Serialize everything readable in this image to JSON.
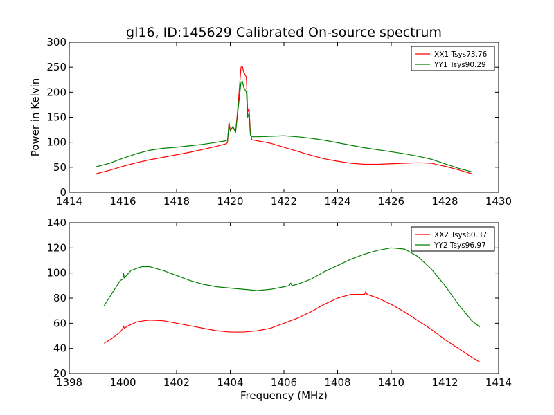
{
  "figure_title": "gl16, ID:145629 Calibrated On-source spectrum",
  "chart_data": [
    {
      "type": "line",
      "title": "gl16, ID:145629 Calibrated On-source spectrum",
      "xlabel": "",
      "ylabel": "Power in Kelvin",
      "xlim": [
        1414,
        1430
      ],
      "ylim": [
        0,
        300
      ],
      "xticks": [
        1414,
        1416,
        1418,
        1420,
        1422,
        1424,
        1426,
        1428,
        1430
      ],
      "yticks": [
        0,
        50,
        100,
        150,
        200,
        250,
        300
      ],
      "legend_position": "top-right",
      "series": [
        {
          "name": "XX1 Tsys73.76",
          "color": "#ff0000",
          "points": [
            [
              1415.0,
              37
            ],
            [
              1415.5,
              44
            ],
            [
              1416.0,
              52
            ],
            [
              1416.5,
              59
            ],
            [
              1417.0,
              65
            ],
            [
              1417.5,
              70
            ],
            [
              1418.0,
              75
            ],
            [
              1418.5,
              80
            ],
            [
              1419.0,
              86
            ],
            [
              1419.5,
              92
            ],
            [
              1419.85,
              97
            ],
            [
              1419.9,
              100
            ],
            [
              1419.95,
              140
            ],
            [
              1420.0,
              125
            ],
            [
              1420.1,
              130
            ],
            [
              1420.2,
              120
            ],
            [
              1420.3,
              180
            ],
            [
              1420.4,
              250
            ],
            [
              1420.45,
              252
            ],
            [
              1420.5,
              240
            ],
            [
              1420.6,
              230
            ],
            [
              1420.65,
              160
            ],
            [
              1420.7,
              168
            ],
            [
              1420.75,
              120
            ],
            [
              1420.8,
              105
            ],
            [
              1421.0,
              103
            ],
            [
              1421.5,
              98
            ],
            [
              1422.0,
              90
            ],
            [
              1422.5,
              82
            ],
            [
              1423.0,
              74
            ],
            [
              1423.5,
              67
            ],
            [
              1424.0,
              62
            ],
            [
              1424.5,
              58
            ],
            [
              1425.0,
              56
            ],
            [
              1425.5,
              56
            ],
            [
              1426.0,
              57
            ],
            [
              1426.5,
              58
            ],
            [
              1427.0,
              59
            ],
            [
              1427.5,
              58
            ],
            [
              1428.0,
              52
            ],
            [
              1428.5,
              45
            ],
            [
              1429.0,
              37
            ]
          ]
        },
        {
          "name": "YY1 Tsys90.29",
          "color": "#008000",
          "points": [
            [
              1415.0,
              51
            ],
            [
              1415.5,
              58
            ],
            [
              1416.0,
              68
            ],
            [
              1416.5,
              77
            ],
            [
              1417.0,
              84
            ],
            [
              1417.5,
              88
            ],
            [
              1418.0,
              90
            ],
            [
              1418.5,
              93
            ],
            [
              1419.0,
              96
            ],
            [
              1419.5,
              100
            ],
            [
              1419.85,
              103
            ],
            [
              1419.9,
              105
            ],
            [
              1419.95,
              135
            ],
            [
              1420.0,
              122
            ],
            [
              1420.1,
              132
            ],
            [
              1420.2,
              120
            ],
            [
              1420.3,
              170
            ],
            [
              1420.4,
              220
            ],
            [
              1420.45,
              222
            ],
            [
              1420.5,
              210
            ],
            [
              1420.6,
              200
            ],
            [
              1420.65,
              150
            ],
            [
              1420.7,
              158
            ],
            [
              1420.75,
              115
            ],
            [
              1420.8,
              111
            ],
            [
              1421.0,
              111
            ],
            [
              1421.5,
              112
            ],
            [
              1422.0,
              113
            ],
            [
              1422.5,
              111
            ],
            [
              1423.0,
              108
            ],
            [
              1423.5,
              104
            ],
            [
              1424.0,
              99
            ],
            [
              1424.5,
              94
            ],
            [
              1425.0,
              89
            ],
            [
              1425.5,
              85
            ],
            [
              1426.0,
              81
            ],
            [
              1426.5,
              77
            ],
            [
              1427.0,
              72
            ],
            [
              1427.5,
              66
            ],
            [
              1428.0,
              57
            ],
            [
              1428.5,
              48
            ],
            [
              1429.0,
              41
            ]
          ]
        }
      ]
    },
    {
      "type": "line",
      "title": "",
      "xlabel": "Frequency (MHz)",
      "ylabel": "",
      "xlim": [
        1398,
        1414
      ],
      "ylim": [
        20,
        140
      ],
      "xticks": [
        1398,
        1400,
        1402,
        1404,
        1406,
        1408,
        1410,
        1412,
        1414
      ],
      "yticks": [
        20,
        40,
        60,
        80,
        100,
        120,
        140
      ],
      "legend_position": "top-right",
      "series": [
        {
          "name": "XX2 Tsys60.37",
          "color": "#ff0000",
          "points": [
            [
              1399.3,
              44
            ],
            [
              1399.6,
              48
            ],
            [
              1399.9,
              53
            ],
            [
              1400.0,
              56
            ],
            [
              1400.02,
              58
            ],
            [
              1400.05,
              56
            ],
            [
              1400.2,
              58
            ],
            [
              1400.5,
              61
            ],
            [
              1400.8,
              62
            ],
            [
              1401.0,
              62.5
            ],
            [
              1401.5,
              62
            ],
            [
              1402.0,
              60
            ],
            [
              1402.5,
              58
            ],
            [
              1403.0,
              56
            ],
            [
              1403.5,
              54
            ],
            [
              1404.0,
              53
            ],
            [
              1404.5,
              53
            ],
            [
              1405.0,
              54
            ],
            [
              1405.5,
              56
            ],
            [
              1406.0,
              60
            ],
            [
              1406.5,
              64
            ],
            [
              1407.0,
              69
            ],
            [
              1407.5,
              75
            ],
            [
              1408.0,
              80
            ],
            [
              1408.5,
              83
            ],
            [
              1409.0,
              83
            ],
            [
              1409.05,
              85
            ],
            [
              1409.1,
              83
            ],
            [
              1409.5,
              80
            ],
            [
              1410.0,
              75
            ],
            [
              1410.5,
              69
            ],
            [
              1411.0,
              62
            ],
            [
              1411.5,
              55
            ],
            [
              1412.0,
              47
            ],
            [
              1412.5,
              40
            ],
            [
              1413.0,
              33
            ],
            [
              1413.3,
              29
            ]
          ]
        },
        {
          "name": "YY2 Tsys96.97",
          "color": "#008000",
          "points": [
            [
              1399.3,
              74
            ],
            [
              1399.6,
              84
            ],
            [
              1399.9,
              94
            ],
            [
              1400.0,
              95
            ],
            [
              1400.02,
              100
            ],
            [
              1400.05,
              96
            ],
            [
              1400.3,
              102
            ],
            [
              1400.7,
              105
            ],
            [
              1401.0,
              105
            ],
            [
              1401.5,
              102
            ],
            [
              1402.0,
              98
            ],
            [
              1402.5,
              94
            ],
            [
              1403.0,
              91
            ],
            [
              1403.5,
              89
            ],
            [
              1404.0,
              88
            ],
            [
              1404.5,
              87
            ],
            [
              1405.0,
              86
            ],
            [
              1405.5,
              87
            ],
            [
              1406.0,
              89
            ],
            [
              1406.2,
              90
            ],
            [
              1406.25,
              92
            ],
            [
              1406.3,
              90
            ],
            [
              1406.5,
              91
            ],
            [
              1407.0,
              95
            ],
            [
              1407.5,
              101
            ],
            [
              1408.0,
              106
            ],
            [
              1408.5,
              111
            ],
            [
              1409.0,
              115
            ],
            [
              1409.5,
              118
            ],
            [
              1410.0,
              120
            ],
            [
              1410.5,
              119
            ],
            [
              1411.0,
              113
            ],
            [
              1411.5,
              103
            ],
            [
              1412.0,
              90
            ],
            [
              1412.5,
              75
            ],
            [
              1413.0,
              62
            ],
            [
              1413.3,
              57
            ]
          ]
        }
      ]
    }
  ]
}
